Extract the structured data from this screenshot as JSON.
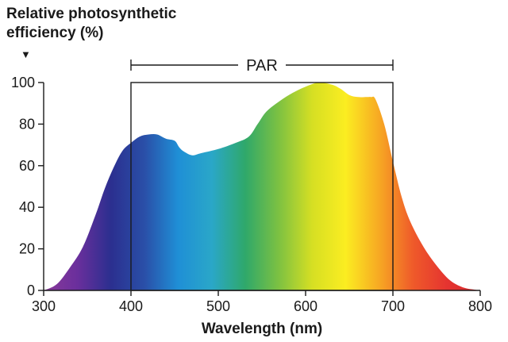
{
  "chart_data": {
    "type": "area",
    "ylabel_lines": [
      "Relative photosynthetic",
      "efficiency (%)"
    ],
    "ylabel_marker": "▼",
    "xlabel": "Wavelength (nm)",
    "xlim": [
      300,
      800
    ],
    "ylim": [
      0,
      100
    ],
    "xticks": [
      300,
      400,
      500,
      600,
      700,
      800
    ],
    "yticks": [
      0,
      20,
      40,
      60,
      80,
      100
    ],
    "grid": false,
    "annotation": {
      "label": "PAR",
      "range": [
        400,
        700
      ]
    },
    "fill": "visible-spectrum gradient",
    "x": [
      300,
      315,
      330,
      345,
      360,
      370,
      380,
      390,
      400,
      410,
      420,
      430,
      440,
      450,
      455,
      460,
      470,
      480,
      500,
      520,
      535,
      545,
      555,
      570,
      585,
      600,
      615,
      630,
      640,
      650,
      660,
      670,
      675,
      680,
      690,
      700,
      710,
      720,
      735,
      750,
      765,
      780,
      795,
      800
    ],
    "y": [
      0,
      3,
      11,
      21,
      37,
      49,
      59,
      67,
      71,
      74,
      75,
      75,
      73,
      72,
      69,
      67,
      65,
      66,
      68,
      71,
      74,
      80,
      86,
      91,
      95,
      98,
      100,
      99,
      97,
      94,
      93,
      93,
      93,
      92,
      80,
      62,
      45,
      33,
      21,
      12,
      5,
      1.5,
      0.3,
      0
    ]
  },
  "colors": {
    "axis": "#1a1a1a",
    "spectrum": [
      "#8a3a9a",
      "#6a2f9c",
      "#2b2f8f",
      "#2a4fa8",
      "#1f8fd6",
      "#2aa7c8",
      "#2fa86a",
      "#7cc142",
      "#d6df23",
      "#fbed21",
      "#f7a823",
      "#ef5a2a",
      "#e53430",
      "#d62a2e"
    ]
  }
}
